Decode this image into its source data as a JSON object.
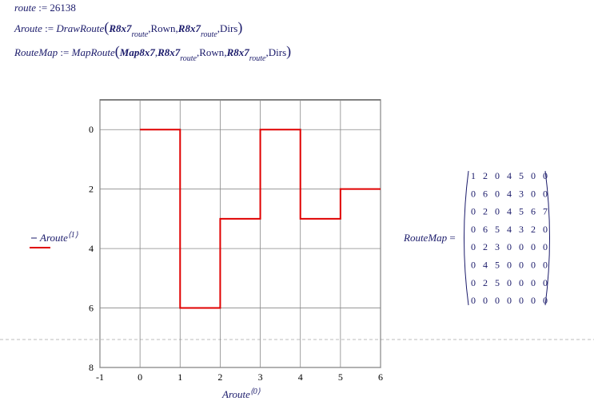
{
  "formulas": [
    [
      "route",
      ":=",
      "26138"
    ],
    [
      "Aroute",
      ":=",
      "DrawRoute",
      "(",
      "R8x7",
      "route",
      ",",
      "Rown",
      ",",
      "R8x7",
      "route",
      ",",
      "Dirs",
      ")"
    ],
    [
      "RouteMap",
      ":=",
      "MapRoute",
      "(",
      "Map8x7",
      ",",
      "R8x7",
      "route",
      ",",
      "Rown",
      ",",
      "R8x7",
      "route",
      ",",
      "Dirs",
      ")"
    ]
  ],
  "chart_data": {
    "type": "line",
    "x": [
      0,
      1,
      1,
      2,
      2,
      3,
      3,
      4,
      4,
      5,
      5,
      6
    ],
    "series": [
      {
        "name": "Aroute",
        "legend_superscript": "⟨1⟩",
        "color": "#e00000",
        "values": [
          0,
          0,
          6,
          6,
          3,
          3,
          0,
          0,
          3,
          3,
          2,
          2
        ]
      }
    ],
    "x_label": "Aroute",
    "x_label_superscript": "⟨0⟩",
    "xlim": [
      -1,
      6
    ],
    "xticks": [
      -1,
      0,
      1,
      2,
      3,
      4,
      5,
      6
    ],
    "ylim": [
      -1,
      8
    ],
    "yticks": [
      0,
      2,
      4,
      6,
      8
    ],
    "y_inverted": true,
    "grid": true
  },
  "matrix": {
    "label": "RouteMap",
    "equals": "=",
    "rows": [
      [
        1,
        2,
        0,
        4,
        5,
        0,
        0
      ],
      [
        0,
        6,
        0,
        4,
        3,
        0,
        0
      ],
      [
        0,
        2,
        0,
        4,
        5,
        6,
        7
      ],
      [
        0,
        6,
        5,
        4,
        3,
        2,
        0
      ],
      [
        0,
        2,
        3,
        0,
        0,
        0,
        0
      ],
      [
        0,
        4,
        5,
        0,
        0,
        0,
        0
      ],
      [
        0,
        2,
        5,
        0,
        0,
        0,
        0
      ],
      [
        0,
        0,
        0,
        0,
        0,
        0,
        0
      ]
    ]
  }
}
